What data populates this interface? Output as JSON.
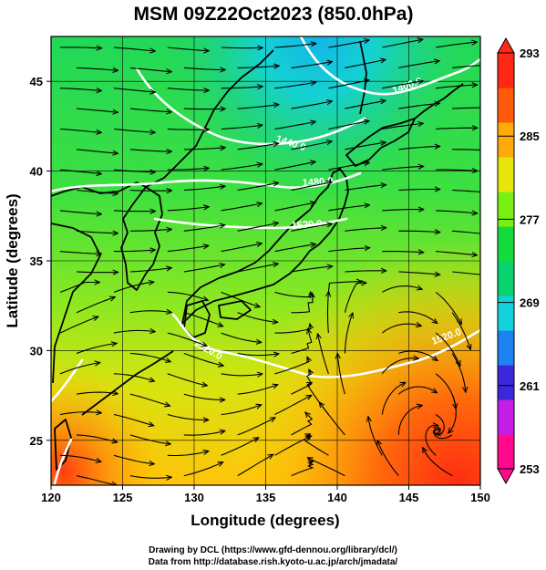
{
  "title": "MSM 09Z22Oct2023 (850.0hPa)",
  "x_axis": {
    "label": "Longitude (degrees)",
    "min": 120,
    "max": 150,
    "ticks": [
      "120",
      "125",
      "130",
      "135",
      "140",
      "145",
      "150"
    ]
  },
  "y_axis": {
    "label": "Latitude  (degrees)",
    "min": 22.5,
    "max": 47.5,
    "ticks": [
      "25",
      "30",
      "35",
      "40",
      "45"
    ]
  },
  "colorbar": {
    "min": 253,
    "max": 293,
    "labels": [
      "293",
      "285",
      "277",
      "269",
      "261",
      "253"
    ],
    "colors": [
      "#ff0a8c",
      "#c31ee6",
      "#3c28dc",
      "#1e82f0",
      "#14d2dc",
      "#0ad26e",
      "#14dc3c",
      "#78f014",
      "#e6e60a",
      "#ffaa0a",
      "#ff5a0a",
      "#ff2814"
    ]
  },
  "contours": {
    "color": "#ffffff",
    "labels": [
      "1400.0",
      "1440.0",
      "1480.0",
      "1520.0",
      "1520.0",
      "1520.0"
    ]
  },
  "wind_style": {
    "color": "#000000"
  },
  "footer": {
    "line1": "Drawing by DCL (https://www.gfd-dennou.org/library/dcl/)",
    "line2": "Data from http://database.rish.kyoto-u.ac.jp/arch/jmadata/"
  }
}
